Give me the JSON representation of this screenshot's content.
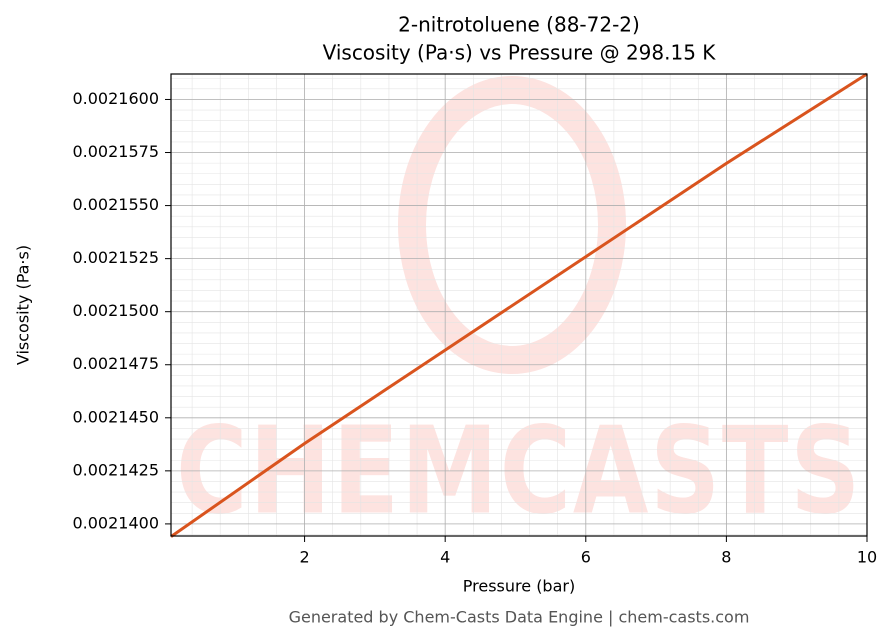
{
  "chart_data": {
    "type": "line",
    "title": "2-nitrotoluene (88-72-2)",
    "subtitle": "Viscosity (Pa·s) vs Pressure @ 298.15 K",
    "x_label": "Pressure (bar)",
    "y_label": "Viscosity (Pa·s)",
    "footer": "Generated by Chem-Casts Data Engine | chem-casts.com",
    "watermark": "CHEMCASTS",
    "x": [
      0.1,
      2,
      4,
      6,
      8,
      10
    ],
    "series": [
      {
        "name": "Viscosity",
        "color": "#d9541e",
        "values": [
          0.0021394,
          0.00214379,
          0.00214819,
          0.00215259,
          0.00215699,
          0.0021612
        ]
      }
    ],
    "xlim": [
      0.1,
      10
    ],
    "ylim": [
      0.00213943,
      0.0021612
    ],
    "xticks": [
      2,
      4,
      6,
      8,
      10
    ],
    "yticks": [
      {
        "value": 0.00214,
        "label": "0.0021400"
      },
      {
        "value": 0.0021425,
        "label": "0.0021425"
      },
      {
        "value": 0.002145,
        "label": "0.0021450"
      },
      {
        "value": 0.0021475,
        "label": "0.0021475"
      },
      {
        "value": 0.00215,
        "label": "0.0021500"
      },
      {
        "value": 0.0021525,
        "label": "0.0021525"
      },
      {
        "value": 0.002155,
        "label": "0.0021550"
      },
      {
        "value": 0.0021575,
        "label": "0.0021575"
      },
      {
        "value": 0.00216,
        "label": "0.0021600"
      }
    ],
    "grid": true
  }
}
